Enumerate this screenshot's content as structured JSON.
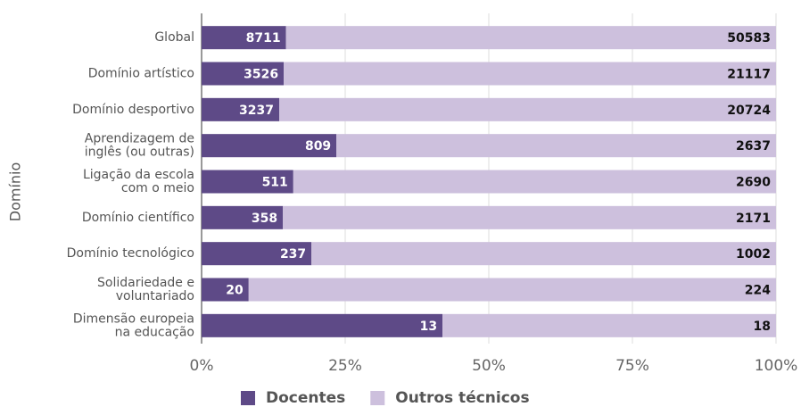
{
  "chart_data": {
    "type": "bar",
    "orientation": "horizontal",
    "stack": "percent",
    "y_label": "Domínio",
    "categories": [
      "Global",
      "Domínio artístico",
      "Domínio desportivo",
      "Aprendizagem de\ninglês (ou outras)",
      "Ligação da escola\ncom o meio",
      "Domínio científico",
      "Domínio tecnológico",
      "Solidariedade e\nvoluntariado",
      "Dimensão europeia\nna educação"
    ],
    "series": [
      {
        "name": "Docentes",
        "color": "#5e4a87",
        "label_color": "#ffffff",
        "values": [
          8711,
          3526,
          3237,
          809,
          511,
          358,
          237,
          20,
          13
        ]
      },
      {
        "name": "Outros técnicos",
        "color": "#cdc0dd",
        "label_color": "#111111",
        "values": [
          50583,
          21117,
          20724,
          2637,
          2690,
          2171,
          1002,
          224,
          18
        ]
      }
    ],
    "xlim": [
      0,
      100
    ],
    "xticks": [
      {
        "value": 0,
        "label": "0%"
      },
      {
        "value": 25,
        "label": "25%"
      },
      {
        "value": 50,
        "label": "50%"
      },
      {
        "value": 75,
        "label": "75%"
      },
      {
        "value": 100,
        "label": "100%"
      }
    ],
    "grid": true,
    "legend": "bottom"
  }
}
